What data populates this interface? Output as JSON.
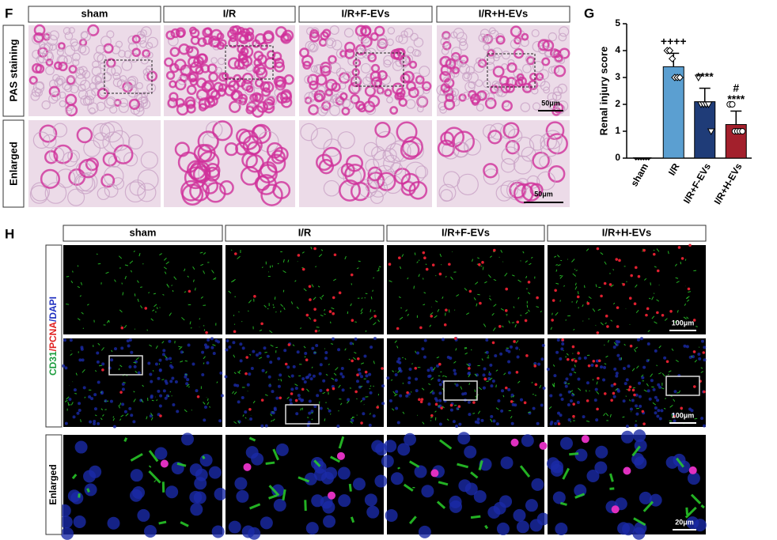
{
  "panel_f": {
    "label": "F",
    "columns": [
      "sham",
      "I/R",
      "I/R+F-EVs",
      "I/R+H-EVs"
    ],
    "rows": [
      "PAS staining",
      "Enlarged"
    ],
    "scale_bars": [
      "50μm",
      "50μm"
    ]
  },
  "chart_data": {
    "type": "bar",
    "panel_label": "G",
    "y_label": "Renal injury score",
    "categories": [
      "sham",
      "I/R",
      "I/R+F-EVs",
      "I/R+H-EVs"
    ],
    "values": [
      0,
      3.4,
      2.1,
      1.25
    ],
    "errors": [
      0,
      0.5,
      0.5,
      0.5
    ],
    "colors": [
      "#c8c8c8",
      "#5b9fd1",
      "#1f3c78",
      "#a3202c"
    ],
    "points": [
      [
        0,
        0,
        0,
        0,
        0,
        0
      ],
      [
        4,
        4,
        3.7,
        3,
        3,
        3
      ],
      [
        3,
        2,
        2,
        2,
        2,
        1
      ],
      [
        2,
        2,
        1,
        1,
        1,
        1
      ]
    ],
    "ylim": [
      0,
      5
    ],
    "yticks": [
      0,
      1,
      2,
      3,
      4,
      5
    ],
    "annotations": [
      "++++",
      "****",
      "#",
      "****"
    ]
  },
  "panel_h": {
    "label": "H",
    "columns": [
      "sham",
      "I/R",
      "I/R+F-EVs",
      "I/R+H-EVs"
    ],
    "row_label_parts": [
      "CD31",
      "/PCNA",
      "/DAPI"
    ],
    "row_label_enlarged": "Enlarged",
    "scale_bars": [
      "100μm",
      "100μm",
      "20μm"
    ]
  }
}
